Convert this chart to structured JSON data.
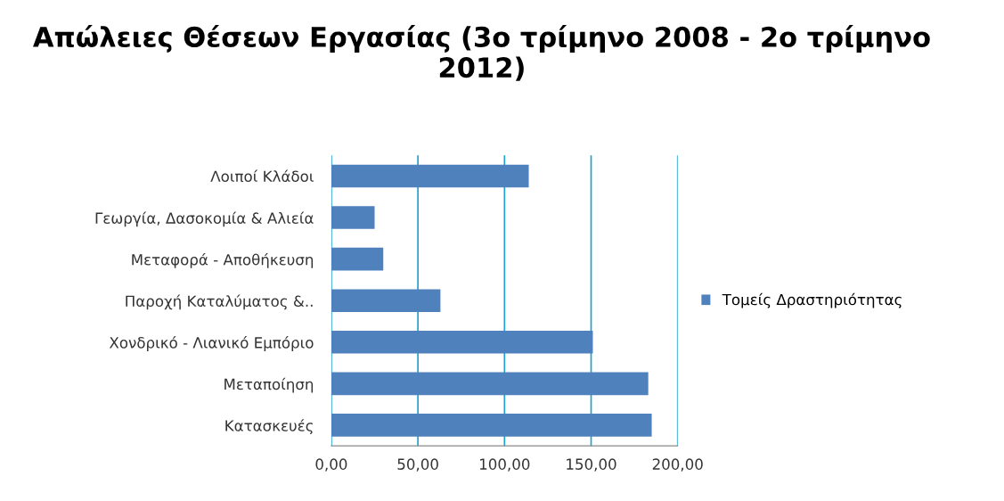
{
  "chart_data": {
    "type": "bar",
    "orientation": "horizontal",
    "title": "Απώλειες Θέσεων Εργασίας (3ο τρίμηνο 2008 - 2ο τρίμηνο 2012)",
    "categories": [
      "Λοιποί Κλάδοι",
      "Γεωργία, Δασοκομία & Αλιεία",
      "Μεταφορά - Αποθήκευση",
      "Παροχή Καταλύματος &..",
      "Χονδρικό - Λιανικό Εμπόριο",
      "Μεταποίηση",
      "Κατασκευές"
    ],
    "series": [
      {
        "name": "Τομείς Δραστηριότητας",
        "color": "#4f81bd",
        "values": [
          114,
          25,
          30,
          63,
          151,
          183,
          185
        ]
      }
    ],
    "xlim": [
      0,
      200
    ],
    "xticks": [
      {
        "value": 0,
        "label": "0,00"
      },
      {
        "value": 50,
        "label": "50,00"
      },
      {
        "value": 100,
        "label": "100,00"
      },
      {
        "value": 150,
        "label": "150,00"
      },
      {
        "value": 200,
        "label": "200,00"
      }
    ],
    "grid": "x",
    "legend": "right"
  }
}
